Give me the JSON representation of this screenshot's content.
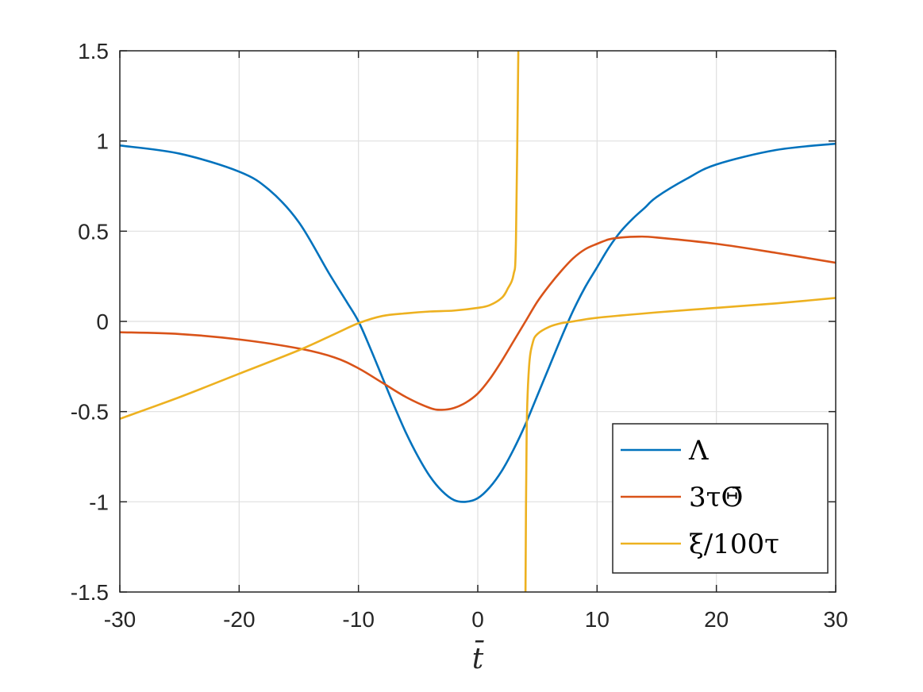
{
  "chart_data": {
    "type": "line",
    "xlabel": "t̄",
    "xlim": [
      -30,
      30
    ],
    "ylim": [
      -1.5,
      1.5
    ],
    "xticks": [
      -30,
      -20,
      -10,
      0,
      10,
      20,
      30
    ],
    "yticks": [
      -1.5,
      -1,
      -0.5,
      0,
      0.5,
      1,
      1.5
    ],
    "xtick_labels": [
      "-30",
      "-20",
      "-10",
      "0",
      "10",
      "20",
      "30"
    ],
    "ytick_labels": [
      "-1.5",
      "-1",
      "-0.5",
      "0",
      "0.5",
      "1",
      "1.5"
    ],
    "grid": true,
    "legend_position": "bottom-right",
    "series": [
      {
        "name": "Λ",
        "color": "#0072BD",
        "x": [
          -30,
          -25,
          -20,
          -17.5,
          -15,
          -12.5,
          -11,
          -10,
          -9,
          -8,
          -7,
          -6,
          -5,
          -4,
          -3,
          -2,
          -1,
          0,
          1,
          2,
          3,
          4,
          5,
          6,
          7,
          8,
          9,
          10,
          11,
          12,
          13,
          14,
          15,
          17.5,
          20,
          25,
          30
        ],
        "y": [
          0.975,
          0.93,
          0.83,
          0.73,
          0.55,
          0.27,
          0.11,
          0.0,
          -0.15,
          -0.31,
          -0.47,
          -0.62,
          -0.75,
          -0.86,
          -0.94,
          -0.99,
          -1.0,
          -0.98,
          -0.92,
          -0.83,
          -0.71,
          -0.57,
          -0.41,
          -0.25,
          -0.09,
          0.06,
          0.19,
          0.3,
          0.41,
          0.5,
          0.57,
          0.63,
          0.69,
          0.79,
          0.87,
          0.95,
          0.985
        ]
      },
      {
        "name": "3τΘ̄",
        "color": "#D95319",
        "x": [
          -30,
          -25,
          -20,
          -15,
          -12,
          -10,
          -8,
          -6,
          -4,
          -3,
          -2,
          -1,
          0,
          1,
          2,
          3,
          4,
          5,
          6,
          7,
          8,
          9,
          10,
          11,
          12,
          13.5,
          15,
          20,
          25,
          30
        ],
        "y": [
          -0.06,
          -0.07,
          -0.1,
          -0.15,
          -0.2,
          -0.26,
          -0.34,
          -0.42,
          -0.48,
          -0.49,
          -0.48,
          -0.45,
          -0.4,
          -0.32,
          -0.22,
          -0.11,
          0.0,
          0.11,
          0.2,
          0.28,
          0.35,
          0.4,
          0.43,
          0.455,
          0.465,
          0.47,
          0.465,
          0.43,
          0.38,
          0.325
        ]
      },
      {
        "name": "ξ/100τ",
        "color": "#EDB120",
        "segments": [
          {
            "x": [
              -30,
              -25,
              -20,
              -15,
              -12,
              -10,
              -8,
              -6,
              -4,
              -2,
              0,
              1,
              2,
              2.5,
              3,
              3.2,
              3.4
            ],
            "y": [
              -0.54,
              -0.42,
              -0.29,
              -0.16,
              -0.07,
              -0.01,
              0.03,
              0.045,
              0.055,
              0.06,
              0.075,
              0.09,
              0.13,
              0.18,
              0.26,
              0.45,
              1.5
            ]
          },
          {
            "x": [
              4.0,
              4.1,
              4.3,
              4.6,
              5,
              6,
              7,
              8,
              10,
              15,
              20,
              25,
              30
            ],
            "y": [
              -1.5,
              -0.6,
              -0.25,
              -0.12,
              -0.07,
              -0.03,
              -0.01,
              0.0,
              0.02,
              0.05,
              0.075,
              0.1,
              0.13
            ]
          }
        ]
      }
    ]
  }
}
